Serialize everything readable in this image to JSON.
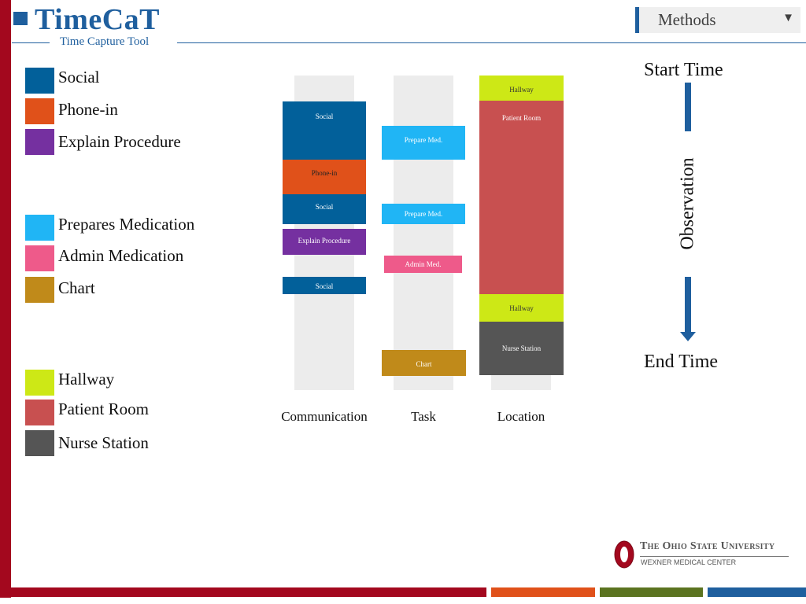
{
  "header": {
    "title": "TimeCaT",
    "subtitle": "Time Capture Tool",
    "section_label": "Methods",
    "colors": {
      "brand_blue": "#1f5f9e",
      "scarlet": "#a3081e"
    }
  },
  "legend": {
    "groups": [
      {
        "items": [
          {
            "label": "Social",
            "color": "#02609a"
          },
          {
            "label": "Phone-in",
            "color": "#e0511a"
          },
          {
            "label": "Explain Procedure",
            "color": "#7530a0"
          }
        ]
      },
      {
        "items": [
          {
            "label": "Prepares Medication",
            "color": "#20b5f5"
          },
          {
            "label": "Admin Medication",
            "color": "#ee5a8a"
          },
          {
            "label": "Chart",
            "color": "#c08a1a"
          }
        ]
      },
      {
        "items": [
          {
            "label": "Hallway",
            "color": "#cde816"
          },
          {
            "label": "Patient Room",
            "color": "#c85050"
          },
          {
            "label": "Nurse Station",
            "color": "#555555"
          }
        ]
      }
    ]
  },
  "timeline": {
    "columns": [
      {
        "label": "Communication"
      },
      {
        "label": "Task"
      },
      {
        "label": "Location"
      }
    ],
    "blocks": {
      "communication": [
        {
          "label": "Social",
          "color": "#02609a",
          "text_color": "#ffffff"
        },
        {
          "label": "Phone-in",
          "color": "#e0511a",
          "text_color": "#222222"
        },
        {
          "label": "Social",
          "color": "#02609a",
          "text_color": "#ffffff"
        },
        {
          "label": "Explain Procedure",
          "color": "#7530a0",
          "text_color": "#ffffff"
        },
        {
          "label": "Social",
          "color": "#02609a",
          "text_color": "#ffffff"
        }
      ],
      "task": [
        {
          "label": "Prepare Med.",
          "color": "#20b5f5",
          "text_color": "#ffffff"
        },
        {
          "label": "Prepare Med.",
          "color": "#20b5f5",
          "text_color": "#ffffff"
        },
        {
          "label": "Admin Med.",
          "color": "#ee5a8a",
          "text_color": "#ffffff"
        },
        {
          "label": "Chart",
          "color": "#c08a1a",
          "text_color": "#ffffff"
        }
      ],
      "location": [
        {
          "label": "Hallway",
          "color": "#cde816",
          "text_color": "#333333"
        },
        {
          "label": "Patient Room",
          "color": "#c85050",
          "text_color": "#ffffff"
        },
        {
          "label": "Hallway",
          "color": "#cde816",
          "text_color": "#333333"
        },
        {
          "label": "Nurse Station",
          "color": "#555555",
          "text_color": "#ffffff"
        }
      ]
    }
  },
  "observation": {
    "start_label": "Start Time",
    "middle_label": "Observation",
    "end_label": "End Time"
  },
  "footer": {
    "org_name": "The Ohio State University",
    "org_sub": "WEXNER MEDICAL CENTER",
    "bar_colors": [
      "#a3081e",
      "#e0511a",
      "#5b7320",
      "#1f5f9e"
    ]
  }
}
